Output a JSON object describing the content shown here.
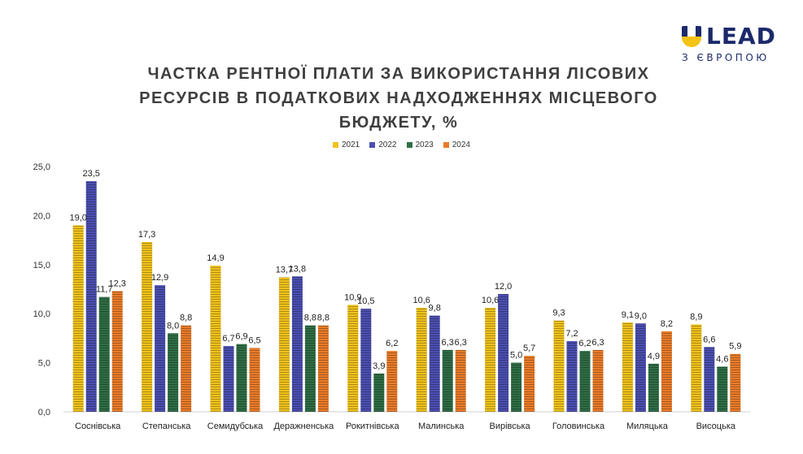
{
  "logo": {
    "word": "LEAD",
    "tagline": "З ЄВРОПОЮ"
  },
  "title_lines": [
    "ЧАСТКА РЕНТНОЇ ПЛАТИ ЗА ВИКОРИСТАННЯ ЛІСОВИХ",
    "РЕСУРСІВ В ПОДАТКОВИХ НАДХОДЖЕННЯХ МІСЦЕВОГО",
    "БЮДЖЕТУ, %"
  ],
  "legend": [
    {
      "label": "2021",
      "color": "#f0c21c"
    },
    {
      "label": "2022",
      "color": "#4b4fb0"
    },
    {
      "label": "2023",
      "color": "#2f6e45"
    },
    {
      "label": "2024",
      "color": "#ea7c2a"
    }
  ],
  "chart_data": {
    "type": "bar",
    "title": "ЧАСТКА РЕНТНОЇ ПЛАТИ ЗА ВИКОРИСТАННЯ ЛІСОВИХ РЕСУРСІВ В ПОДАТКОВИХ НАДХОДЖЕННЯХ МІСЦЕВОГО БЮДЖЕТУ, %",
    "categories": [
      "Соснівська",
      "Степанська",
      "Семидубська",
      "Деражненська",
      "Рокитнівська",
      "Малинська",
      "Вирівська",
      "Головинська",
      "Миляцька",
      "Висоцька"
    ],
    "series": [
      {
        "name": "2021",
        "values": [
          19.0,
          17.3,
          14.9,
          13.7,
          10.9,
          10.6,
          10.6,
          9.3,
          9.1,
          8.9
        ]
      },
      {
        "name": "2022",
        "values": [
          23.5,
          12.9,
          6.7,
          13.8,
          10.5,
          9.8,
          12.0,
          7.2,
          9.0,
          6.6
        ]
      },
      {
        "name": "2023",
        "values": [
          11.7,
          8.0,
          6.9,
          8.8,
          3.9,
          6.3,
          5.0,
          6.2,
          4.9,
          4.6
        ]
      },
      {
        "name": "2024",
        "values": [
          12.3,
          8.8,
          6.5,
          8.8,
          6.2,
          6.3,
          5.7,
          6.3,
          8.2,
          5.9
        ]
      }
    ],
    "yticks": [
      "0,0",
      "5,0",
      "10,0",
      "15,0",
      "20,0",
      "25,0"
    ],
    "data_labels": [
      [
        "19,0",
        "17,3",
        "14,9",
        "13,7",
        "10,9",
        "10,6",
        "10,6",
        "9,3",
        "9,1",
        "8,9"
      ],
      [
        "23,5",
        "12,9",
        "6,7",
        "13,8",
        "10,5",
        "9,8",
        "12,0",
        "7,2",
        "9,0",
        "6,6"
      ],
      [
        "11,7",
        "8,0",
        "6,9",
        "8,8",
        "3,9",
        "6,3",
        "5,0",
        "6,2",
        "4,9",
        "4,6"
      ],
      [
        "12,3",
        "8,8",
        "6,5",
        "8,8",
        "6,2",
        "6,3",
        "5,7",
        "6,3",
        "8,2",
        "5,9"
      ]
    ],
    "ylim": [
      0,
      25
    ],
    "xlabel": "",
    "ylabel": "",
    "grid": false,
    "legend_position": "top"
  }
}
